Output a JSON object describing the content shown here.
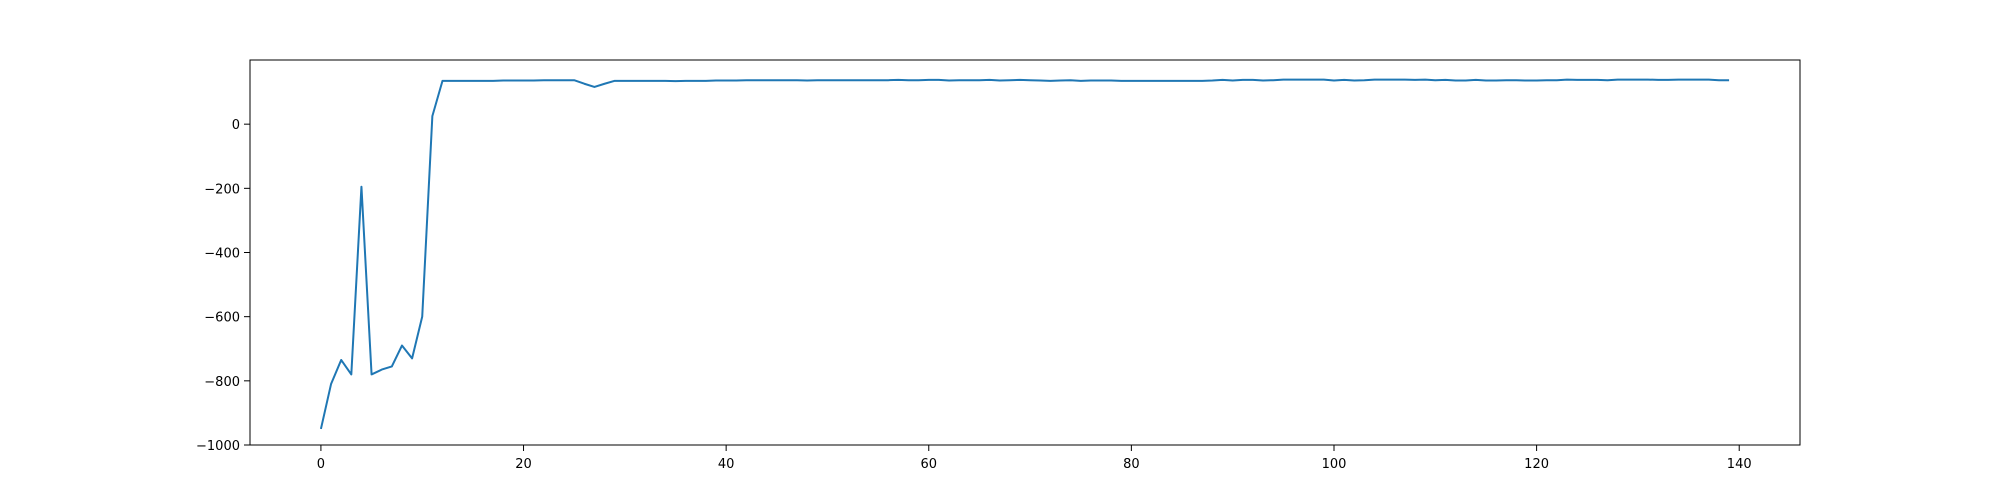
{
  "chart_data": {
    "type": "line",
    "title": "",
    "xlabel": "",
    "ylabel": "",
    "xlim": [
      -7,
      146
    ],
    "ylim": [
      -1000,
      200
    ],
    "xticks": [
      0,
      20,
      40,
      60,
      80,
      100,
      120,
      140
    ],
    "yticks": [
      -1000,
      -800,
      -600,
      -400,
      -200,
      0
    ],
    "xtick_labels": [
      "0",
      "20",
      "40",
      "60",
      "80",
      "100",
      "120",
      "140"
    ],
    "ytick_labels": [
      "−1000",
      "−800",
      "−600",
      "−400",
      "−200",
      "0"
    ],
    "grid": false,
    "legend": "none",
    "colors": {
      "line": "#1f77b4",
      "axes": "#000000",
      "background": "#ffffff"
    },
    "series": [
      {
        "values": [
          -950,
          -810,
          -735,
          -780,
          -195,
          -780,
          -765,
          -755,
          -690,
          -730,
          -600,
          25,
          135,
          135,
          135,
          135,
          135,
          135,
          136,
          136,
          136,
          136,
          137,
          137,
          137,
          137,
          126,
          116,
          126,
          135,
          135,
          135,
          135,
          135,
          135,
          134,
          135,
          135,
          135,
          136,
          136,
          136,
          137,
          137,
          137,
          137,
          137,
          137,
          136,
          137,
          137,
          137,
          137,
          137,
          137,
          137,
          137,
          138,
          137,
          137,
          138,
          138,
          136,
          137,
          137,
          137,
          138,
          136,
          137,
          138,
          137,
          136,
          135,
          136,
          137,
          135,
          136,
          136,
          136,
          135,
          135,
          135,
          135,
          135,
          135,
          135,
          135,
          135,
          136,
          138,
          136,
          138,
          138,
          136,
          137,
          139,
          139,
          139,
          139,
          139,
          136,
          138,
          136,
          137,
          139,
          139,
          139,
          139,
          138,
          139,
          137,
          138,
          136,
          136,
          138,
          136,
          136,
          137,
          137,
          136,
          136,
          137,
          137,
          139,
          138,
          138,
          138,
          137,
          139,
          139,
          139,
          139,
          138,
          138,
          139,
          139,
          139,
          139,
          137,
          137
        ]
      }
    ]
  }
}
